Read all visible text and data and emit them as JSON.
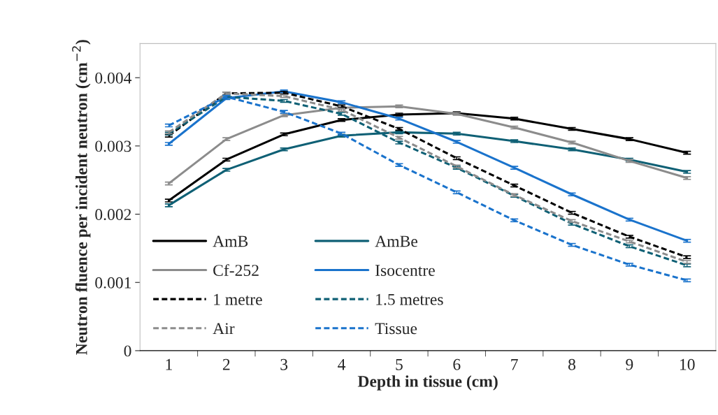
{
  "chart_data": {
    "type": "line",
    "xlabel": "Depth in tissue (cm)",
    "ylabel": "Neutron fluence per incident neutron (cm$^{−2}$)",
    "categories": [
      "1",
      "2",
      "3",
      "4",
      "5",
      "6",
      "7",
      "8",
      "9",
      "10"
    ],
    "ylim": [
      0,
      0.0045
    ],
    "yticks": [
      0,
      0.001,
      0.002,
      0.003,
      0.004
    ],
    "grid": false,
    "legend": "bottom left",
    "marker": "none",
    "series": [
      {
        "name": "AmB",
        "color": "#000000",
        "line_style": "solid",
        "values": [
          0.0022,
          0.0028,
          0.00317,
          0.00338,
          0.00346,
          0.00348,
          0.0034,
          0.00325,
          0.0031,
          0.0029
        ],
        "errors": [
          2e-05,
          2e-05,
          2e-05,
          2e-05,
          2e-05,
          2e-05,
          2e-05,
          2e-05,
          2e-05,
          2e-05
        ]
      },
      {
        "name": "AmBe",
        "color": "#0f6075",
        "line_style": "solid",
        "values": [
          0.00213,
          0.00265,
          0.00295,
          0.00315,
          0.0032,
          0.00318,
          0.00307,
          0.00295,
          0.0028,
          0.00262
        ],
        "errors": [
          2e-05,
          2e-05,
          2e-05,
          2e-05,
          2e-05,
          2e-05,
          2e-05,
          2e-05,
          2e-05,
          2e-05
        ]
      },
      {
        "name": "Cf-252",
        "color": "#8c8c8c",
        "line_style": "solid",
        "values": [
          0.00245,
          0.0031,
          0.00345,
          0.00356,
          0.00358,
          0.00347,
          0.00327,
          0.00305,
          0.00278,
          0.00253
        ],
        "errors": [
          2e-05,
          2e-05,
          2e-05,
          2e-05,
          2e-05,
          2e-05,
          2e-05,
          2e-05,
          2e-05,
          2e-05
        ]
      },
      {
        "name": "Isocentre",
        "color": "#1a73cc",
        "line_style": "solid",
        "values": [
          0.00303,
          0.0037,
          0.0038,
          0.00364,
          0.0034,
          0.00306,
          0.00268,
          0.00229,
          0.00192,
          0.00161
        ],
        "errors": [
          2e-05,
          2e-05,
          2e-05,
          2e-05,
          2e-05,
          2e-05,
          2e-05,
          2e-05,
          2e-05,
          2e-05
        ]
      },
      {
        "name": "1 metre",
        "color": "#000000",
        "line_style": "dashed",
        "values": [
          0.00315,
          0.00377,
          0.00378,
          0.00358,
          0.00325,
          0.00282,
          0.00242,
          0.00202,
          0.00167,
          0.00137
        ],
        "errors": [
          2e-05,
          2e-05,
          2e-05,
          2e-05,
          2e-05,
          2e-05,
          2e-05,
          2e-05,
          2e-05,
          2e-05
        ]
      },
      {
        "name": "1.5 metres",
        "color": "#0f6075",
        "line_style": "dashed",
        "values": [
          0.00318,
          0.00372,
          0.00366,
          0.00347,
          0.00305,
          0.00268,
          0.00227,
          0.00186,
          0.00153,
          0.00125
        ],
        "errors": [
          2e-05,
          2e-05,
          2e-05,
          2e-05,
          2e-05,
          2e-05,
          2e-05,
          2e-05,
          2e-05,
          2e-05
        ]
      },
      {
        "name": "Air",
        "color": "#8c8c8c",
        "line_style": "dashed",
        "values": [
          0.0032,
          0.00377,
          0.00373,
          0.00353,
          0.00312,
          0.0027,
          0.00228,
          0.0019,
          0.0016,
          0.0013
        ],
        "errors": [
          2e-05,
          2e-05,
          2e-05,
          2e-05,
          2e-05,
          2e-05,
          2e-05,
          2e-05,
          2e-05,
          2e-05
        ]
      },
      {
        "name": "Tissue",
        "color": "#1a73cc",
        "line_style": "dashed",
        "values": [
          0.0033,
          0.00372,
          0.0035,
          0.00318,
          0.00272,
          0.00232,
          0.00191,
          0.00155,
          0.00126,
          0.00103
        ],
        "errors": [
          2e-05,
          2e-05,
          2e-05,
          2e-05,
          2e-05,
          2e-05,
          2e-05,
          2e-05,
          2e-05,
          2e-05
        ]
      }
    ]
  }
}
